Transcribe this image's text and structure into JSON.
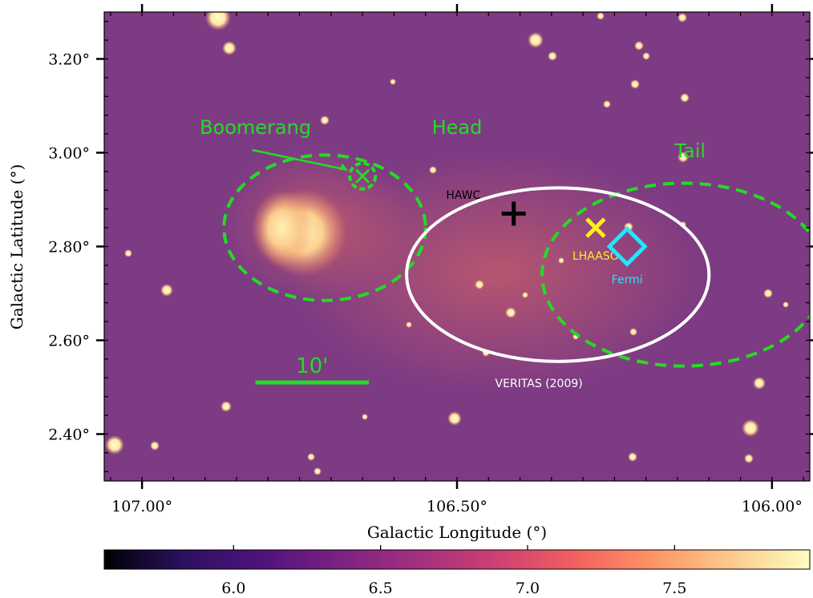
{
  "chart_data": {
    "type": "heatmap",
    "xlabel": "Galactic Longitude (°)",
    "ylabel": "Galactic Latitude (°)",
    "x_reversed": true,
    "xlim": [
      107.06,
      105.94
    ],
    "ylim": [
      2.3,
      3.3
    ],
    "x_ticks": [
      {
        "value": 107.0,
        "label": "107.00°"
      },
      {
        "value": 106.5,
        "label": "106.50°"
      },
      {
        "value": 106.0,
        "label": "106.00°"
      }
    ],
    "y_ticks": [
      {
        "value": 2.4,
        "label": "2.40°"
      },
      {
        "value": 2.6,
        "label": "2.60°"
      },
      {
        "value": 2.8,
        "label": "2.80°"
      },
      {
        "value": 3.0,
        "label": "3.00°"
      },
      {
        "value": 3.2,
        "label": "3.20°"
      }
    ],
    "colormap": "magma",
    "colorbar": {
      "range": [
        5.56,
        7.96
      ],
      "ticks": [
        {
          "value": 6.0,
          "label": "6.0"
        },
        {
          "value": 6.5,
          "label": "6.5"
        },
        {
          "value": 7.0,
          "label": "7.0"
        },
        {
          "value": 7.5,
          "label": "7.5"
        }
      ],
      "colors": [
        "#000004",
        "#2a115f",
        "#50127b",
        "#7a2282",
        "#a3307e",
        "#cd4071",
        "#f1605d",
        "#fd9467",
        "#fec98d",
        "#fcfdbf"
      ]
    },
    "background_color": "#7d3b83",
    "ellipses": [
      {
        "name": "head",
        "label": "Head",
        "color": "#22dd22",
        "style": "dashed",
        "cl": 106.71,
        "cb": 2.84,
        "rx_deg": 0.16,
        "ry_deg": 0.155,
        "label_l": 106.5,
        "label_b": 3.04
      },
      {
        "name": "tail",
        "label": "Tail",
        "color": "#22dd22",
        "style": "dashed",
        "cl": 106.14,
        "cb": 2.74,
        "rx_deg": 0.225,
        "ry_deg": 0.195,
        "label_l": 106.13,
        "label_b": 2.99
      },
      {
        "name": "veritas",
        "label": "VERITAS (2009)",
        "color": "#ffffff",
        "style": "solid",
        "cl": 106.34,
        "cb": 2.74,
        "rx_deg": 0.24,
        "ry_deg": 0.185,
        "label_l": 106.37,
        "label_b": 2.5
      }
    ],
    "markers": [
      {
        "name": "hawc",
        "label": "HAWC",
        "symbol": "plus",
        "color": "#000000",
        "l": 106.41,
        "b": 2.87,
        "label_l": 106.49,
        "label_b": 2.91
      },
      {
        "name": "lhaaso",
        "label": "LHAASO",
        "symbol": "x",
        "color": "#ffee22",
        "l": 106.28,
        "b": 2.84,
        "label_l": 106.28,
        "label_b": 2.78
      },
      {
        "name": "fermi",
        "label": "Fermi",
        "symbol": "diamond",
        "color": "#22e5ff",
        "l": 106.23,
        "b": 2.8,
        "label_l": 106.23,
        "label_b": 2.73
      },
      {
        "name": "boomerang",
        "label": "Boomerang",
        "symbol": "circle-x",
        "color": "#22dd22",
        "l": 106.65,
        "b": 2.95,
        "label_l": 106.82,
        "label_b": 3.04
      }
    ],
    "scalebar": {
      "label": "10'",
      "color": "#22dd22",
      "l1": 106.82,
      "l2": 106.64,
      "b": 2.51
    }
  }
}
